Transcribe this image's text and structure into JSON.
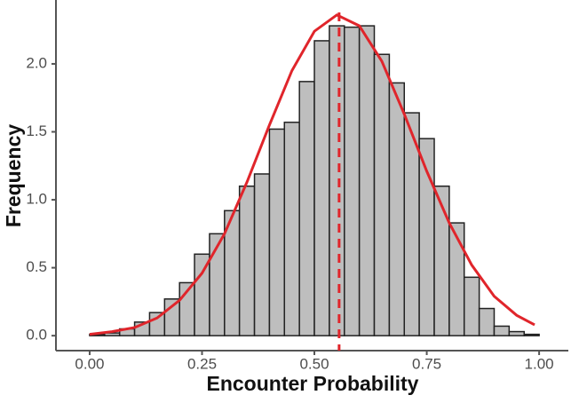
{
  "chart_data": {
    "type": "histogram",
    "xlabel": "Encounter Probability",
    "ylabel": "Frequency",
    "bins": [
      0,
      0.0333,
      0.0667,
      0.1,
      0.1333,
      0.1667,
      0.2,
      0.2333,
      0.2667,
      0.3,
      0.3333,
      0.3667,
      0.4,
      0.4333,
      0.4667,
      0.5,
      0.5333,
      0.5667,
      0.6,
      0.6333,
      0.6667,
      0.7,
      0.7333,
      0.7667,
      0.8,
      0.8333,
      0.8667,
      0.9,
      0.9333,
      0.9667,
      1
    ],
    "values": [
      0.01,
      0.02,
      0.05,
      0.1,
      0.17,
      0.27,
      0.39,
      0.6,
      0.75,
      0.92,
      1.1,
      1.19,
      1.52,
      1.57,
      1.87,
      2.17,
      2.28,
      2.27,
      2.28,
      2.07,
      1.86,
      1.64,
      1.45,
      1.1,
      0.83,
      0.43,
      0.2,
      0.07,
      0.03,
      0.01
    ],
    "color": "#bebebe",
    "curve": {
      "color": "#e0252b",
      "x": [
        0,
        0.05,
        0.1,
        0.15,
        0.2,
        0.25,
        0.3,
        0.35,
        0.4,
        0.45,
        0.5,
        0.55,
        0.6,
        0.65,
        0.7,
        0.75,
        0.8,
        0.85,
        0.9,
        0.95,
        0.99
      ],
      "y": [
        0.01,
        0.03,
        0.06,
        0.13,
        0.26,
        0.46,
        0.75,
        1.13,
        1.55,
        1.95,
        2.24,
        2.36,
        2.28,
        2.02,
        1.63,
        1.21,
        0.83,
        0.52,
        0.29,
        0.15,
        0.08
      ]
    },
    "vline": 0.555,
    "xlim": [
      -0.075,
      1.065
    ],
    "ylim": [
      -0.11,
      2.47
    ],
    "xticks": [
      {
        "value": 0,
        "label": "0.00"
      },
      {
        "value": 0.25,
        "label": "0.25"
      },
      {
        "value": 0.5,
        "label": "0.50"
      },
      {
        "value": 0.75,
        "label": "0.75"
      },
      {
        "value": 1,
        "label": "1.00"
      }
    ],
    "yticks": [
      {
        "value": 0,
        "label": "0.0"
      },
      {
        "value": 0.5,
        "label": "0.5"
      },
      {
        "value": 1,
        "label": "1.0"
      },
      {
        "value": 1.5,
        "label": "1.5"
      },
      {
        "value": 2,
        "label": "2.0"
      }
    ]
  }
}
